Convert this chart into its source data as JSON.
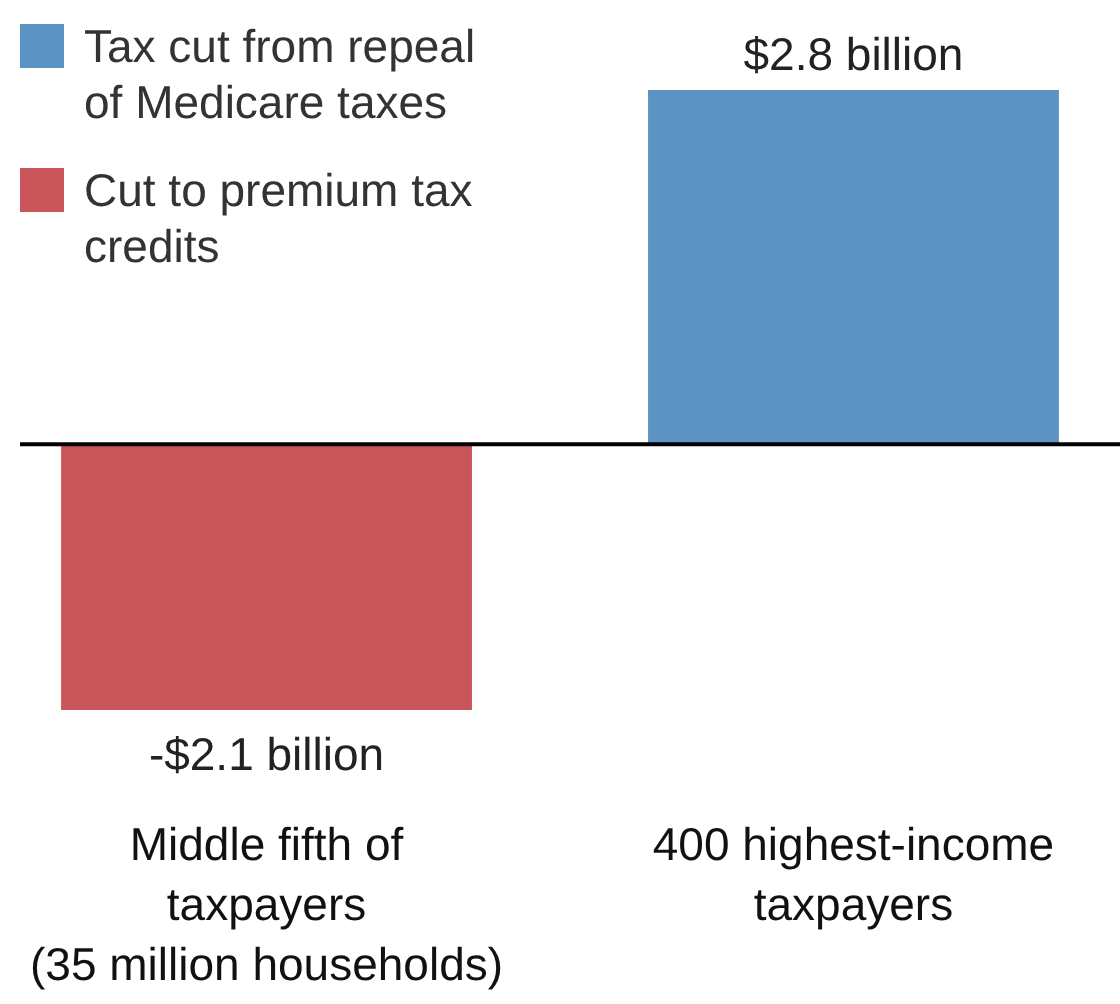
{
  "chart_data": {
    "type": "bar",
    "categories": [
      "Middle fifth of taxpayers (35 million households)",
      "400 highest-income taxpayers"
    ],
    "series": [
      {
        "name": "Tax cut from repeal of Medicare taxes",
        "color": "#5a93c4",
        "values": [
          null,
          2.8
        ],
        "value_labels": [
          null,
          "$2.8 billion"
        ]
      },
      {
        "name": "Cut to premium tax credits",
        "color": "#c9555a",
        "values": [
          -2.1,
          null
        ],
        "value_labels": [
          "-$2.1 billion",
          null
        ]
      }
    ],
    "legend": "top left"
  }
}
